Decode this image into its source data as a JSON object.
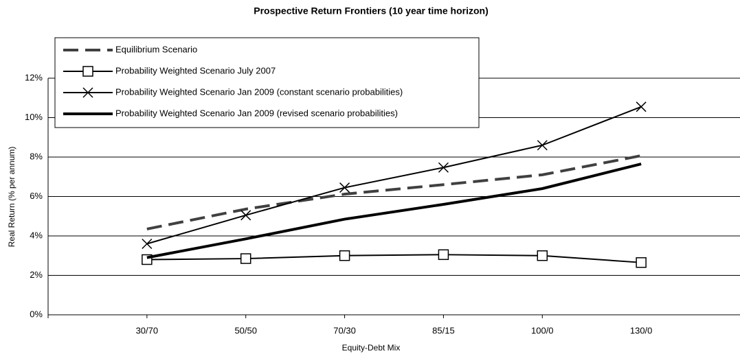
{
  "chart_data": {
    "type": "line",
    "title": "Prospective Return Frontiers (10 year time horizon)",
    "x_label": "Equity-Debt Mix",
    "y_label": "Real Return (% per annum)",
    "categories": [
      "30/70",
      "50/50",
      "70/30",
      "85/15",
      "100/0",
      "130/0"
    ],
    "ylim": [
      0,
      12
    ],
    "yticks": [
      {
        "value": 0,
        "label": "0%"
      },
      {
        "value": 2,
        "label": "2%"
      },
      {
        "value": 4,
        "label": "4%"
      },
      {
        "value": 6,
        "label": "6%"
      },
      {
        "value": 8,
        "label": "8%"
      },
      {
        "value": 10,
        "label": "10%"
      },
      {
        "value": 12,
        "label": "12%"
      }
    ],
    "grid": true,
    "legend": "upper left",
    "series": [
      {
        "name": "Equilibrium Scenario",
        "color": "#404040",
        "dashed": true,
        "width": 4,
        "marker": "none",
        "values": [
          4.35,
          5.36,
          6.12,
          6.6,
          7.1,
          8.07
        ]
      },
      {
        "name": "Probability Weighted Scenario July 2007",
        "color": "#000000",
        "dashed": false,
        "width": 2,
        "marker": "square",
        "values": [
          2.8,
          2.85,
          3.0,
          3.05,
          3.0,
          2.65
        ]
      },
      {
        "name": "Probability Weighted Scenario Jan 2009 (constant scenario probabilities)",
        "color": "#000000",
        "dashed": false,
        "width": 2,
        "marker": "x",
        "values": [
          3.6,
          5.05,
          6.45,
          7.47,
          8.6,
          10.55
        ]
      },
      {
        "name": "Probability Weighted Scenario Jan 2009 (revised scenario probabilities)",
        "color": "#000000",
        "dashed": false,
        "width": 4,
        "marker": "none",
        "values": [
          2.9,
          3.85,
          4.85,
          5.6,
          6.4,
          7.65
        ]
      }
    ]
  }
}
